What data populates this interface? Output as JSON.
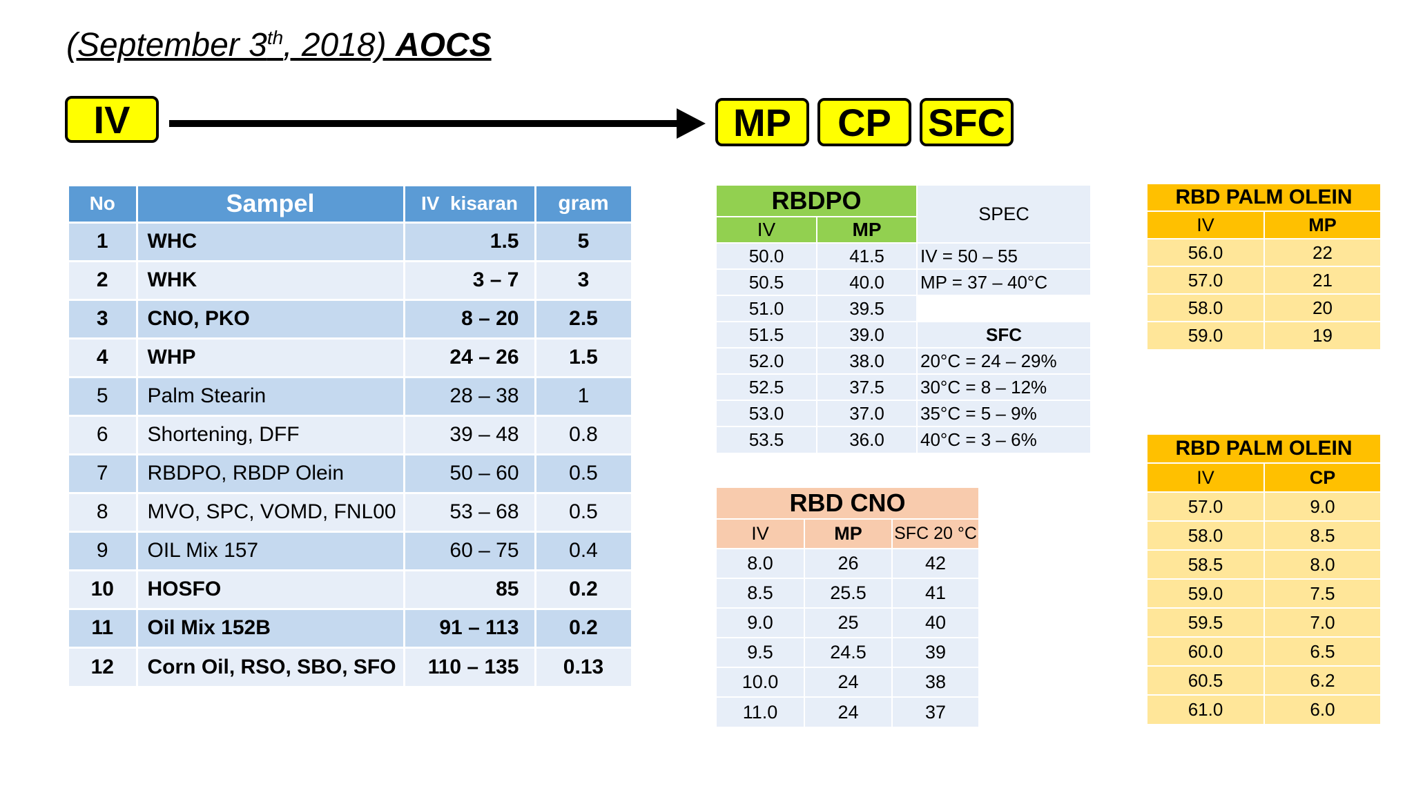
{
  "title": {
    "prefix": "(September 3",
    "sup": "th",
    "middle": ", 2018) ",
    "bold": "AOCS"
  },
  "flow": {
    "start": "IV",
    "targets": [
      "MP",
      "CP",
      "SFC"
    ]
  },
  "colors": {
    "yellow": "#ffff00",
    "blue_header": "#5b9bd5",
    "green_header": "#92d050",
    "salmon_header": "#f8cbad",
    "orange_header": "#ffc000"
  },
  "main_table": {
    "headers": [
      "No",
      "Sampel",
      "IV  kisaran",
      "gram"
    ],
    "rows": [
      {
        "no": "1",
        "sampel": "WHC",
        "iv": "1.5",
        "gram": "5",
        "bold": true
      },
      {
        "no": "2",
        "sampel": "WHK",
        "iv": "3 – 7",
        "gram": "3",
        "bold": true
      },
      {
        "no": "3",
        "sampel": "CNO, PKO",
        "iv": "8 – 20",
        "gram": "2.5",
        "bold": true
      },
      {
        "no": "4",
        "sampel": "WHP",
        "iv": "24 – 26",
        "gram": "1.5",
        "bold": true
      },
      {
        "no": "5",
        "sampel": "Palm Stearin",
        "iv": "28 – 38",
        "gram": "1",
        "bold": false
      },
      {
        "no": "6",
        "sampel": "Shortening, DFF",
        "iv": "39 – 48",
        "gram": "0.8",
        "bold": false
      },
      {
        "no": "7",
        "sampel": "RBDPO, RBDP Olein",
        "iv": "50 – 60",
        "gram": "0.5",
        "bold": false
      },
      {
        "no": "8",
        "sampel": "MVO, SPC, VOMD, FNL00",
        "iv": "53 – 68",
        "gram": "0.5",
        "bold": false
      },
      {
        "no": "9",
        "sampel": "OIL Mix 157",
        "iv": "60 – 75",
        "gram": "0.4",
        "bold": false
      },
      {
        "no": "10",
        "sampel": "HOSFO",
        "iv": "85",
        "gram": "0.2",
        "bold": true
      },
      {
        "no": "11",
        "sampel": "Oil Mix 152B",
        "iv": "91 – 113",
        "gram": "0.2",
        "bold": true
      },
      {
        "no": "12",
        "sampel": "Corn Oil, RSO, SBO, SFO",
        "iv": "110 – 135",
        "gram": "0.13",
        "bold": true
      }
    ]
  },
  "rbdpo": {
    "title": "RBDPO",
    "col_iv": "IV",
    "col_mp": "MP",
    "spec_label": "SPEC",
    "spec_lines": [
      "IV = 50 – 55",
      "MP = 37 – 40°C"
    ],
    "sfc_label": "SFC",
    "sfc_lines": [
      "20°C = 24 – 29%",
      "30°C = 8 – 12%",
      "35°C = 5 – 9%",
      "40°C = 3 – 6%"
    ],
    "rows": [
      [
        "50.0",
        "41.5"
      ],
      [
        "50.5",
        "40.0"
      ],
      [
        "51.0",
        "39.5"
      ],
      [
        "51.5",
        "39.0"
      ],
      [
        "52.0",
        "38.0"
      ],
      [
        "52.5",
        "37.5"
      ],
      [
        "53.0",
        "37.0"
      ],
      [
        "53.5",
        "36.0"
      ]
    ]
  },
  "rbd_cno": {
    "title": "RBD CNO",
    "headers": [
      "IV",
      "MP",
      "SFC 20 °C"
    ],
    "rows": [
      [
        "8.0",
        "26",
        "42"
      ],
      [
        "8.5",
        "25.5",
        "41"
      ],
      [
        "9.0",
        "25",
        "40"
      ],
      [
        "9.5",
        "24.5",
        "39"
      ],
      [
        "10.0",
        "24",
        "38"
      ],
      [
        "11.0",
        "24",
        "37"
      ]
    ]
  },
  "olein_mp": {
    "title": "RBD PALM OLEIN",
    "headers": [
      "IV",
      "MP"
    ],
    "rows": [
      [
        "56.0",
        "22"
      ],
      [
        "57.0",
        "21"
      ],
      [
        "58.0",
        "20"
      ],
      [
        "59.0",
        "19"
      ]
    ]
  },
  "olein_cp": {
    "title": "RBD PALM OLEIN",
    "headers": [
      "IV",
      "CP"
    ],
    "rows": [
      [
        "57.0",
        "9.0"
      ],
      [
        "58.0",
        "8.5"
      ],
      [
        "58.5",
        "8.0"
      ],
      [
        "59.0",
        "7.5"
      ],
      [
        "59.5",
        "7.0"
      ],
      [
        "60.0",
        "6.5"
      ],
      [
        "60.5",
        "6.2"
      ],
      [
        "61.0",
        "6.0"
      ]
    ]
  }
}
